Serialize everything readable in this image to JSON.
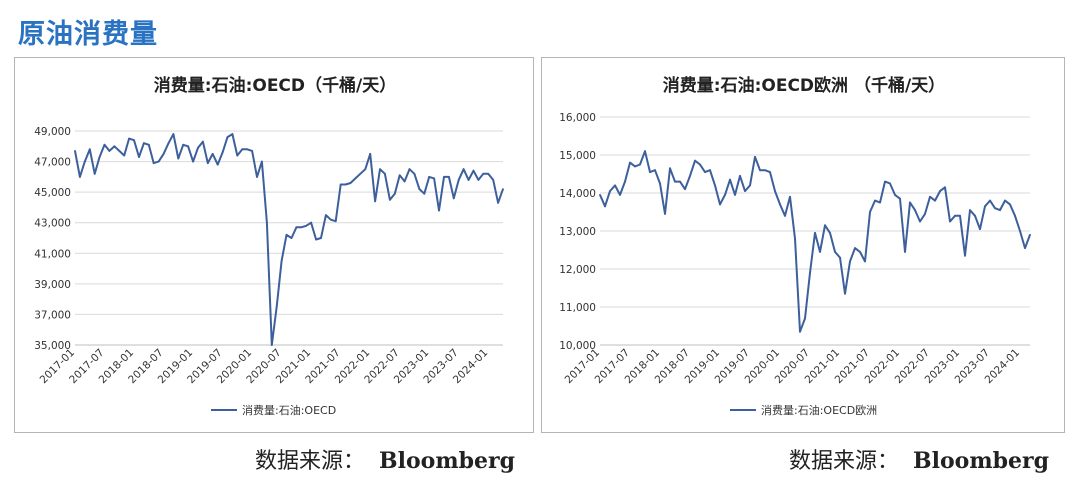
{
  "page_title": "原油消费量",
  "sources": [
    {
      "label": "数据来源：",
      "value": "Bloomberg"
    },
    {
      "label": "数据来源：",
      "value": "Bloomberg"
    }
  ],
  "colors": {
    "title": "#2a73c2",
    "series": "#3d5f9c",
    "grid": "#d9d9d9"
  },
  "chart_data": [
    {
      "type": "line",
      "title": "消费量:石油:OECD（千桶/天）",
      "ylim": [
        35000,
        49000
      ],
      "yticks": [
        35000,
        37000,
        39000,
        41000,
        43000,
        45000,
        47000,
        49000
      ],
      "ytick_labels": [
        "35,000",
        "37,000",
        "39,000",
        "41,000",
        "43,000",
        "45,000",
        "47,000",
        "49,000"
      ],
      "xtick_labels": [
        "2017-01",
        "2017-07",
        "2018-01",
        "2018-07",
        "2019-01",
        "2019-07",
        "2020-01",
        "2020-07",
        "2021-01",
        "2021-07",
        "2022-01",
        "2022-07",
        "2023-01",
        "2023-07",
        "2024-01"
      ],
      "grid": true,
      "legend": "bottom",
      "series": [
        {
          "name": "消费量:石油:OECD",
          "values": [
            47700,
            46000,
            47000,
            47800,
            46200,
            47300,
            48100,
            47700,
            48000,
            47700,
            47400,
            48500,
            48400,
            47300,
            48200,
            48100,
            46900,
            47000,
            47500,
            48200,
            48800,
            47200,
            48100,
            48000,
            47000,
            47900,
            48300,
            46900,
            47500,
            46800,
            47600,
            48600,
            48800,
            47400,
            47800,
            47800,
            47700,
            46000,
            47000,
            43000,
            35000,
            37500,
            40500,
            42200,
            42000,
            42700,
            42700,
            42800,
            43000,
            41900,
            42000,
            43500,
            43200,
            43100,
            45500,
            45500,
            45600,
            45900,
            46200,
            46500,
            47500,
            44400,
            46500,
            46200,
            44500,
            44900,
            46100,
            45700,
            46500,
            46200,
            45200,
            44900,
            46000,
            45900,
            43800,
            46000,
            46000,
            44600,
            45800,
            46500,
            45800,
            46400,
            45800,
            46200,
            46200,
            45800,
            44300,
            45200
          ]
        }
      ]
    },
    {
      "type": "line",
      "title": "消费量:石油:OECD欧洲 （千桶/天）",
      "ylim": [
        10000,
        16000
      ],
      "yticks": [
        10000,
        11000,
        12000,
        13000,
        14000,
        15000,
        16000
      ],
      "ytick_labels": [
        "10,000",
        "11,000",
        "12,000",
        "13,000",
        "14,000",
        "15,000",
        "16,000"
      ],
      "xtick_labels": [
        "2017-01",
        "2017-07",
        "2018-01",
        "2018-07",
        "2019-01",
        "2019-07",
        "2020-01",
        "2020-07",
        "2021-01",
        "2021-07",
        "2022-01",
        "2022-07",
        "2023-01",
        "2023-07",
        "2024-01"
      ],
      "grid": true,
      "legend": "bottom",
      "series": [
        {
          "name": "消费量:石油:OECD欧洲",
          "values": [
            13950,
            13650,
            14050,
            14200,
            13950,
            14300,
            14800,
            14700,
            14750,
            15100,
            14550,
            14600,
            14250,
            13450,
            14650,
            14300,
            14300,
            14100,
            14450,
            14850,
            14750,
            14550,
            14600,
            14200,
            13700,
            13950,
            14350,
            13950,
            14450,
            14050,
            14200,
            14950,
            14600,
            14600,
            14550,
            14050,
            13700,
            13400,
            13900,
            12800,
            10350,
            10700,
            11900,
            12950,
            12450,
            13150,
            12950,
            12450,
            12300,
            11350,
            12200,
            12550,
            12450,
            12200,
            13500,
            13800,
            13750,
            14300,
            14250,
            13950,
            13850,
            12450,
            13750,
            13550,
            13250,
            13450,
            13900,
            13800,
            14050,
            14150,
            13250,
            13400,
            13400,
            12350,
            13550,
            13400,
            13050,
            13650,
            13800,
            13600,
            13550,
            13800,
            13700,
            13400,
            13000,
            12550,
            12900
          ]
        }
      ]
    }
  ]
}
